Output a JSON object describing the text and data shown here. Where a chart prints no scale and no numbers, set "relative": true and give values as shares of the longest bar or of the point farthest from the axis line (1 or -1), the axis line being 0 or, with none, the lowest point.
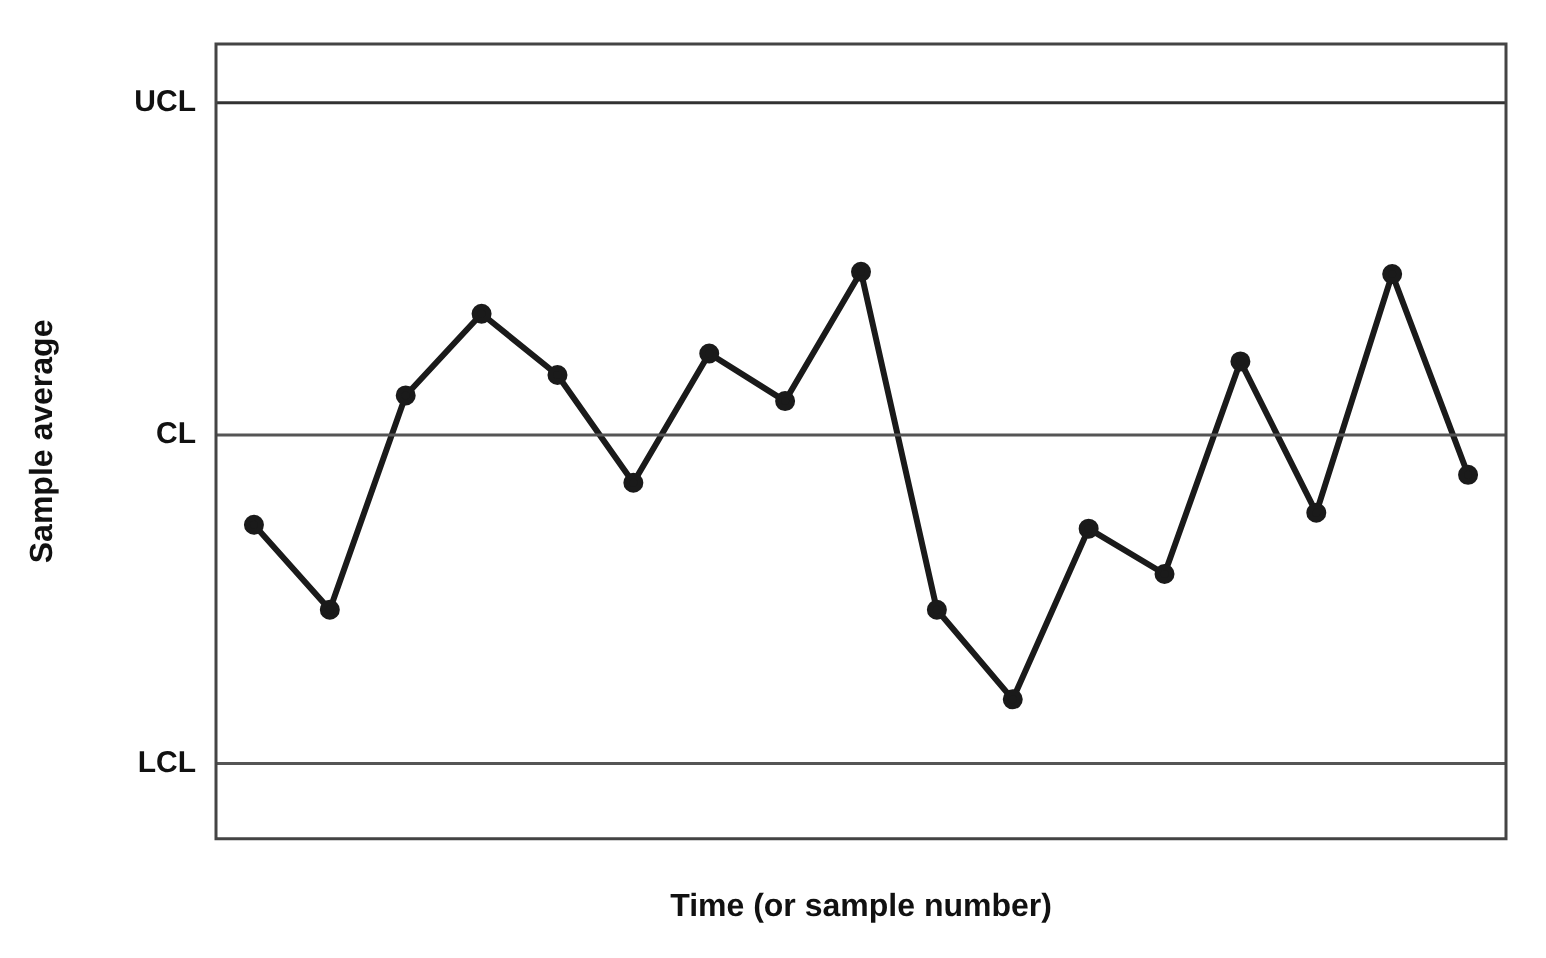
{
  "chart_data": {
    "type": "line",
    "relative": true,
    "xlabel": "Time (or sample number)",
    "ylabel": "Sample average",
    "categories": [
      null,
      null,
      null,
      null,
      null,
      null,
      null,
      null,
      null,
      null,
      null,
      null,
      null,
      null,
      null,
      null,
      null
    ],
    "series": [
      {
        "color": "#1a1a1a",
        "values": [
          0.554,
          0.404,
          0.782,
          0.926,
          0.818,
          0.628,
          0.856,
          0.772,
          1.0,
          0.404,
          0.246,
          0.547,
          0.467,
          0.842,
          0.575,
          0.996,
          0.642
        ]
      }
    ],
    "ref_lines": [
      {
        "axis": "y",
        "value": 1.298,
        "label": "UCL",
        "color": "#333333"
      },
      {
        "axis": "y",
        "value": 0.712,
        "label": "CL",
        "color": "#555555"
      },
      {
        "axis": "y",
        "value": 0.133,
        "label": "LCL",
        "color": "#555555"
      }
    ],
    "marker": "circle",
    "line_style": "solid",
    "grid": false,
    "legend": false
  }
}
